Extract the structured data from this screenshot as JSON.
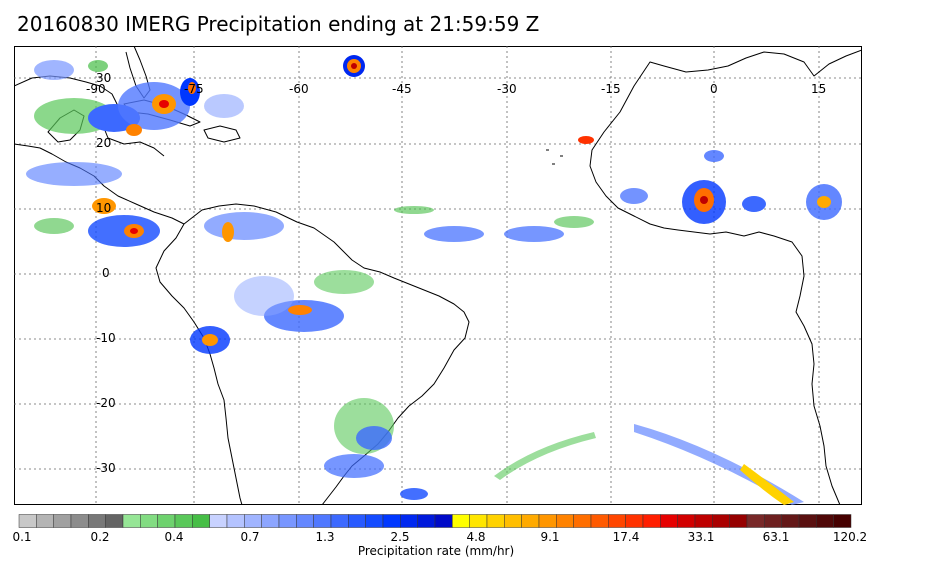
{
  "title": "20160830 IMERG Precipitation ending at 21:59:59 Z",
  "map": {
    "lon_labels": [
      "-90",
      "-75",
      "-60",
      "-45",
      "-30",
      "-15",
      "0",
      "15"
    ],
    "lat_labels": [
      "30",
      "20",
      "10",
      "0",
      "-10",
      "-20",
      "-30"
    ]
  },
  "colorbar": {
    "tick_labels": [
      "0.1",
      "0.2",
      "0.4",
      "0.7",
      "1.3",
      "2.5",
      "4.8",
      "9.1",
      "17.4",
      "33.1",
      "63.1",
      "120.2"
    ],
    "label": "Precipitation rate (mm/hr)",
    "colors": [
      "#c8c8c8",
      "#b4b4b4",
      "#a0a0a0",
      "#8c8c8c",
      "#787878",
      "#646464",
      "#96e696",
      "#82dc82",
      "#6ed26e",
      "#5ac85a",
      "#46be46",
      "#c8d2ff",
      "#b4c3ff",
      "#a0b4ff",
      "#8ca5ff",
      "#7896ff",
      "#6487ff",
      "#5078ff",
      "#3c69ff",
      "#285aff",
      "#144bff",
      "#0037ff",
      "#0028f0",
      "#0019dc",
      "#000ac8",
      "#ffff00",
      "#ffe600",
      "#ffd200",
      "#ffbe00",
      "#ffaa00",
      "#ff9600",
      "#ff8200",
      "#ff6e00",
      "#ff5a00",
      "#ff4600",
      "#ff3200",
      "#ff1e00",
      "#e60000",
      "#d20000",
      "#be0000",
      "#aa0000",
      "#960000",
      "#782828",
      "#6e2020",
      "#641818",
      "#5a1010",
      "#500808",
      "#460000"
    ]
  }
}
